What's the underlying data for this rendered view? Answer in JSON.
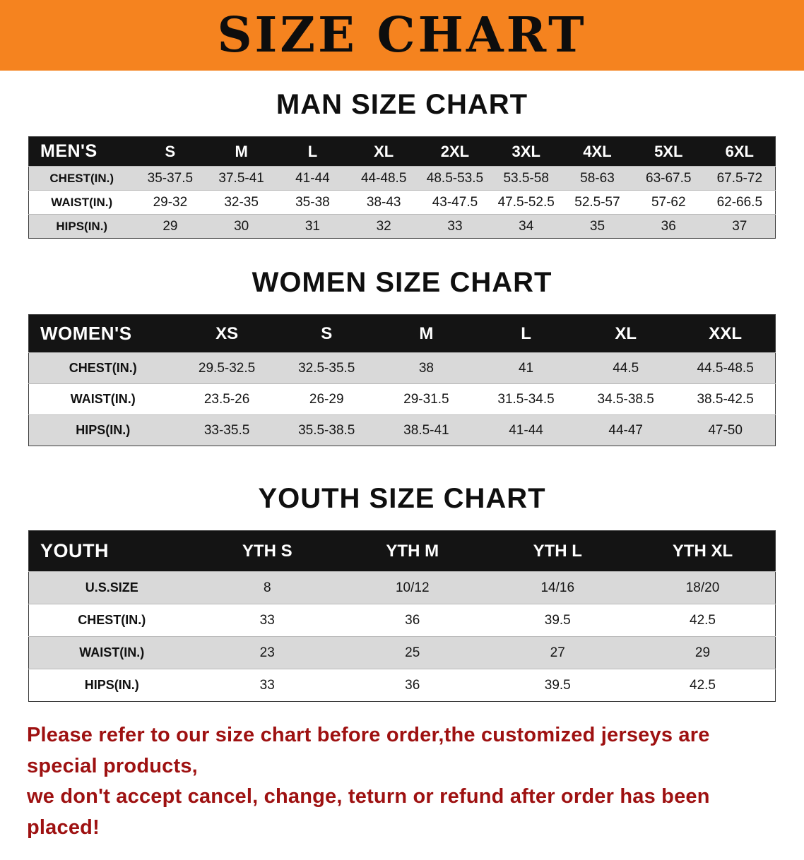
{
  "banner": {
    "title": "SIZE CHART"
  },
  "colors": {
    "banner_background": "#F5831F",
    "table_header_background": "#141414",
    "table_row_alt": "#D9D9D9",
    "notice_text": "#9E1111"
  },
  "sections": [
    {
      "heading": "MAN SIZE CHART",
      "table": {
        "header": [
          "MEN'S",
          "S",
          "M",
          "L",
          "XL",
          "2XL",
          "3XL",
          "4XL",
          "5XL",
          "6XL"
        ],
        "rows": [
          [
            "CHEST(IN.)",
            "35-37.5",
            "37.5-41",
            "41-44",
            "44-48.5",
            "48.5-53.5",
            "53.5-58",
            "58-63",
            "63-67.5",
            "67.5-72"
          ],
          [
            "WAIST(IN.)",
            "29-32",
            "32-35",
            "35-38",
            "38-43",
            "43-47.5",
            "47.5-52.5",
            "52.5-57",
            "57-62",
            "62-66.5"
          ],
          [
            "HIPS(IN.)",
            "29",
            "30",
            "31",
            "32",
            "33",
            "34",
            "35",
            "36",
            "37"
          ]
        ]
      }
    },
    {
      "heading": "WOMEN SIZE CHART",
      "table": {
        "header": [
          "WOMEN'S",
          "XS",
          "S",
          "M",
          "L",
          "XL",
          "XXL"
        ],
        "rows": [
          [
            "CHEST(IN.)",
            "29.5-32.5",
            "32.5-35.5",
            "38",
            "41",
            "44.5",
            "44.5-48.5"
          ],
          [
            "WAIST(IN.)",
            "23.5-26",
            "26-29",
            "29-31.5",
            "31.5-34.5",
            "34.5-38.5",
            "38.5-42.5"
          ],
          [
            "HIPS(IN.)",
            "33-35.5",
            "35.5-38.5",
            "38.5-41",
            "41-44",
            "44-47",
            "47-50"
          ]
        ]
      }
    },
    {
      "heading": "YOUTH SIZE CHART",
      "table": {
        "header": [
          "YOUTH",
          "YTH S",
          "YTH M",
          "YTH L",
          "YTH XL"
        ],
        "rows": [
          [
            "U.S.SIZE",
            "8",
            "10/12",
            "14/16",
            "18/20"
          ],
          [
            "CHEST(IN.)",
            "33",
            "36",
            "39.5",
            "42.5"
          ],
          [
            "WAIST(IN.)",
            "23",
            "25",
            "27",
            "29"
          ],
          [
            "HIPS(IN.)",
            "33",
            "36",
            "39.5",
            "42.5"
          ]
        ]
      }
    }
  ],
  "notice": {
    "lines": [
      "Please refer to our size chart before order,the customized jerseys are special products,",
      "we don't accept cancel, change, teturn or refund after order has been placed!"
    ]
  }
}
